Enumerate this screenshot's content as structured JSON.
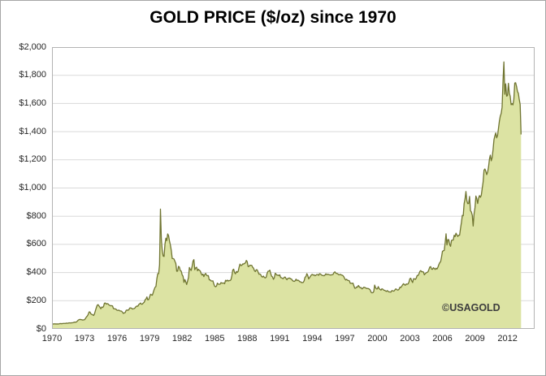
{
  "title": "GOLD PRICE ($/oz) since 1970",
  "watermark": "©USAGOLD",
  "chart_data": {
    "type": "area",
    "title": "GOLD PRICE ($/oz) since 1970",
    "xlabel": "",
    "ylabel": "",
    "grid": true,
    "legend": "none",
    "ylim": [
      0,
      2000
    ],
    "xlim": [
      1970,
      2014.5
    ],
    "y_tick_values": [
      0,
      200,
      400,
      600,
      800,
      1000,
      1200,
      1400,
      1600,
      1800,
      2000
    ],
    "y_tick_labels": [
      "$0",
      "$200",
      "$400",
      "$600",
      "$800",
      "$1,000",
      "$1,200",
      "$1,400",
      "$1,600",
      "$1,800",
      "$2,000"
    ],
    "x_tick_years": [
      1970,
      1973,
      1976,
      1979,
      1982,
      1985,
      1988,
      1991,
      1994,
      1997,
      2000,
      2003,
      2006,
      2009,
      2012
    ],
    "x_tick_labels": [
      "1970",
      "1973",
      "1976",
      "1979",
      "1982",
      "1985",
      "1988",
      "1991",
      "1994",
      "1997",
      "2000",
      "2003",
      "2006",
      "2009",
      "2012"
    ],
    "colors": {
      "fill": "#dce3a3",
      "line": "#6f7430",
      "grid": "#d9d9d9",
      "plot_border": "#b3b3b3",
      "text": "#262626",
      "title_text": "#000000"
    },
    "series": [
      {
        "name": "Gold price ($/oz)",
        "start_year": 1970,
        "interval": "monthly",
        "monthly_values": [
          35,
          35,
          35,
          36,
          35,
          35,
          35,
          35,
          36,
          38,
          37,
          37,
          38,
          39,
          39,
          39,
          41,
          40,
          41,
          43,
          42,
          43,
          43,
          44,
          46,
          48,
          48,
          49,
          55,
          62,
          66,
          67,
          66,
          65,
          63,
          64,
          65,
          74,
          84,
          91,
          102,
          120,
          120,
          107,
          103,
          100,
          95,
          107,
          129,
          150,
          168,
          172,
          163,
          154,
          143,
          155,
          152,
          159,
          182,
          184,
          176,
          179,
          178,
          170,
          167,
          164,
          165,
          163,
          144,
          143,
          142,
          139,
          132,
          131,
          133,
          128,
          127,
          126,
          118,
          110,
          114,
          116,
          131,
          134,
          132,
          136,
          148,
          149,
          147,
          141,
          143,
          145,
          150,
          159,
          162,
          161,
          173,
          178,
          184,
          175,
          176,
          184,
          189,
          206,
          212,
          227,
          206,
          208,
          227,
          246,
          242,
          239,
          258,
          279,
          295,
          301,
          355,
          392,
          392,
          455,
          850,
          637,
          554,
          517,
          514,
          601,
          644,
          627,
          674,
          661,
          624,
          595,
          557,
          500,
          499,
          496,
          480,
          465,
          409,
          410,
          444,
          438,
          413,
          410,
          384,
          374,
          330,
          350,
          334,
          315,
          339,
          364,
          436,
          422,
          415,
          444,
          481,
          492,
          420,
          433,
          438,
          413,
          423,
          416,
          412,
          394,
          382,
          389,
          371,
          386,
          394,
          381,
          377,
          378,
          348,
          348,
          341,
          340,
          341,
          320,
          303,
          299,
          304,
          325,
          317,
          317,
          317,
          329,
          324,
          326,
          325,
          321,
          345,
          339,
          346,
          340,
          343,
          343,
          349,
          377,
          418,
          424,
          399,
          391,
          408,
          401,
          409,
          438,
          460,
          450,
          451,
          461,
          460,
          465,
          468,
          486,
          477,
          442,
          444,
          452,
          451,
          451,
          438,
          431,
          413,
          407,
          420,
          419,
          404,
          388,
          390,
          384,
          371,
          368,
          375,
          365,
          362,
          367,
          394,
          409,
          410,
          417,
          393,
          374,
          369,
          352,
          363,
          395,
          388,
          381,
          382,
          378,
          384,
          364,
          363,
          358,
          357,
          367,
          368,
          356,
          349,
          359,
          360,
          361,
          355,
          354,
          344,
          339,
          337,
          341,
          353,
          343,
          346,
          344,
          335,
          335,
          329,
          329,
          330,
          342,
          367,
          372,
          392,
          379,
          355,
          364,
          374,
          383,
          387,
          382,
          384,
          377,
          381,
          386,
          386,
          380,
          392,
          390,
          384,
          379,
          379,
          377,
          382,
          391,
          385,
          388,
          386,
          384,
          383,
          383,
          385,
          387,
          400,
          405,
          396,
          393,
          392,
          385,
          384,
          387,
          383,
          381,
          378,
          369,
          355,
          347,
          352,
          345,
          344,
          341,
          324,
          324,
          323,
          325,
          306,
          289,
          289,
          298,
          296,
          308,
          299,
          292,
          293,
          284,
          289,
          296,
          294,
          291,
          287,
          287,
          286,
          283,
          277,
          261,
          256,
          257,
          265,
          311,
          293,
          284,
          284,
          300,
          286,
          280,
          275,
          285,
          282,
          275,
          274,
          270,
          266,
          272,
          266,
          262,
          263,
          261,
          272,
          270,
          268,
          272,
          283,
          283,
          276,
          276,
          282,
          296,
          294,
          303,
          314,
          321,
          313,
          310,
          319,
          317,
          319,
          333,
          357,
          359,
          341,
          329,
          356,
          356,
          351,
          360,
          379,
          379,
          390,
          408,
          414,
          405,
          407,
          403,
          384,
          392,
          398,
          401,
          405,
          421,
          439,
          442,
          424,
          423,
          434,
          429,
          422,
          431,
          425,
          438,
          456,
          470,
          477,
          510,
          550,
          555,
          557,
          611,
          675,
          596,
          634,
          633,
          598,
          586,
          628,
          630,
          631,
          665,
          655,
          679,
          667,
          656,
          665,
          665,
          713,
          755,
          806,
          803,
          890,
          922,
          975,
          910,
          889,
          890,
          940,
          839,
          830,
          807,
          730,
          816,
          859,
          943,
          924,
          890,
          929,
          946,
          934,
          949,
          997,
          1043,
          1127,
          1135,
          1118,
          1095,
          1113,
          1149,
          1205,
          1233,
          1193,
          1216,
          1271,
          1342,
          1370,
          1391,
          1356,
          1373,
          1424,
          1474,
          1510,
          1529,
          1573,
          1756,
          1895,
          1665,
          1739,
          1652,
          1656,
          1743,
          1674,
          1650,
          1591,
          1599,
          1590,
          1630,
          1745,
          1747,
          1721,
          1685,
          1672,
          1628,
          1593,
          1380
        ]
      }
    ]
  }
}
